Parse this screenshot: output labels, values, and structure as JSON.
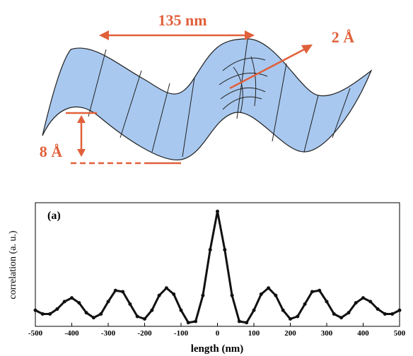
{
  "diagram": {
    "period_label": "135 nm",
    "spacing_label": "2 Å",
    "amplitude_label": "8 Å"
  },
  "chart_data": {
    "type": "line",
    "panel_label": "(a)",
    "xlabel": "length (nm)",
    "ylabel": "correlation (a. u.)",
    "color": "#111111",
    "x": [
      -500,
      -480,
      -460,
      -440,
      -420,
      -400,
      -380,
      -360,
      -340,
      -320,
      -300,
      -280,
      -260,
      -240,
      -220,
      -200,
      -180,
      -160,
      -140,
      -120,
      -100,
      -80,
      -60,
      -40,
      -20,
      0,
      20,
      40,
      60,
      80,
      100,
      120,
      140,
      160,
      180,
      200,
      220,
      240,
      260,
      280,
      300,
      320,
      340,
      360,
      380,
      400,
      420,
      440,
      460,
      480,
      500
    ],
    "values": [
      0.13,
      0.1,
      0.1,
      0.14,
      0.2,
      0.23,
      0.19,
      0.11,
      0.07,
      0.1,
      0.2,
      0.29,
      0.28,
      0.18,
      0.08,
      0.06,
      0.13,
      0.25,
      0.31,
      0.26,
      0.13,
      0.03,
      0.04,
      0.25,
      0.62,
      0.93,
      0.62,
      0.25,
      0.04,
      0.03,
      0.13,
      0.26,
      0.31,
      0.25,
      0.13,
      0.06,
      0.08,
      0.18,
      0.28,
      0.29,
      0.2,
      0.1,
      0.07,
      0.11,
      0.19,
      0.23,
      0.2,
      0.14,
      0.1,
      0.1,
      0.13
    ],
    "xlim": [
      -500,
      500
    ],
    "xticks": [
      -500,
      -400,
      -300,
      -200,
      -100,
      0,
      100,
      200,
      300,
      400,
      500
    ],
    "ylim": [
      0,
      1
    ]
  }
}
